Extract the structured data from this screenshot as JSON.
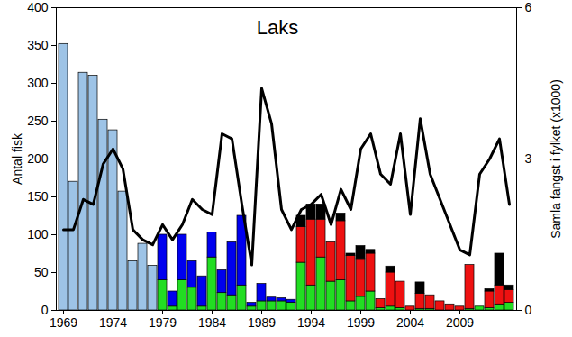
{
  "chart_data": {
    "type": "bar",
    "title": "Laks",
    "y_label": "Antal fisk",
    "y2_label": "Samla fangst i fylket (x1000)",
    "stacked": true,
    "categories": [
      1969,
      1970,
      1971,
      1972,
      1973,
      1974,
      1975,
      1976,
      1977,
      1978,
      1979,
      1980,
      1981,
      1982,
      1983,
      1984,
      1985,
      1986,
      1987,
      1988,
      1989,
      1990,
      1991,
      1992,
      1993,
      1994,
      1995,
      1996,
      1997,
      1998,
      1999,
      2000,
      2001,
      2002,
      2003,
      2004,
      2005,
      2006,
      2007,
      2008,
      2009,
      2010,
      2011,
      2012,
      2013,
      2014
    ],
    "xticks": [
      1969,
      1974,
      1979,
      1984,
      1989,
      1994,
      1999,
      2004,
      2009
    ],
    "ylim": [
      0,
      400
    ],
    "yticks": [
      0,
      50,
      100,
      150,
      200,
      250,
      300,
      350,
      400
    ],
    "y2lim": [
      0,
      6
    ],
    "y2ticks": [
      0,
      3,
      6
    ],
    "series": [
      {
        "color": "#9dc3e6",
        "values": [
          352,
          170,
          314,
          310,
          252,
          238,
          157,
          65,
          88,
          59,
          null,
          null,
          null,
          null,
          null,
          null,
          null,
          null,
          null,
          null,
          null,
          null,
          null,
          null,
          null,
          null,
          null,
          null,
          null,
          null,
          null,
          null,
          null,
          null,
          null,
          null,
          null,
          null,
          null,
          null,
          null,
          null,
          null,
          null,
          null,
          null
        ]
      },
      {
        "color": "#22dd22",
        "values": [
          null,
          null,
          null,
          null,
          null,
          null,
          null,
          null,
          null,
          null,
          40,
          5,
          40,
          30,
          5,
          70,
          23,
          20,
          33,
          5,
          12,
          12,
          12,
          10,
          63,
          33,
          70,
          38,
          40,
          12,
          18,
          25,
          3,
          5,
          3,
          0,
          2,
          2,
          0,
          0,
          0,
          2,
          5,
          3,
          8,
          10
        ]
      },
      {
        "color": "#0000ee",
        "values": [
          null,
          null,
          null,
          null,
          null,
          null,
          null,
          null,
          null,
          null,
          60,
          20,
          60,
          35,
          40,
          33,
          30,
          70,
          92,
          5,
          23,
          5,
          4,
          4,
          null,
          null,
          null,
          null,
          null,
          null,
          null,
          null,
          null,
          null,
          null,
          null,
          null,
          null,
          null,
          null,
          null,
          null,
          null,
          null,
          null,
          null
        ]
      },
      {
        "color": "#ee1111",
        "values": [
          null,
          null,
          null,
          null,
          null,
          null,
          null,
          null,
          null,
          null,
          null,
          null,
          null,
          null,
          null,
          null,
          null,
          null,
          null,
          null,
          null,
          null,
          null,
          null,
          47,
          87,
          50,
          52,
          78,
          60,
          50,
          50,
          12,
          45,
          35,
          5,
          20,
          18,
          12,
          8,
          5,
          58,
          0,
          22,
          25,
          17
        ]
      },
      {
        "color": "#000000",
        "values": [
          null,
          null,
          null,
          null,
          null,
          null,
          null,
          null,
          null,
          null,
          null,
          null,
          null,
          null,
          null,
          null,
          null,
          null,
          null,
          null,
          null,
          null,
          null,
          null,
          15,
          20,
          20,
          0,
          10,
          3,
          17,
          5,
          0,
          8,
          0,
          0,
          15,
          0,
          0,
          0,
          0,
          0,
          0,
          3,
          42,
          6
        ]
      },
      {
        "type": "line",
        "axis": "y2",
        "color": "#000000",
        "values": [
          1.6,
          1.6,
          2.2,
          2.1,
          2.9,
          3.2,
          2.8,
          1.6,
          1.4,
          1.3,
          1.7,
          1.4,
          1.7,
          2.2,
          2.0,
          1.9,
          3.5,
          3.4,
          2.1,
          0.9,
          4.4,
          3.7,
          2.0,
          1.6,
          2.0,
          2.1,
          2.3,
          1.7,
          2.4,
          2.0,
          3.2,
          3.5,
          2.7,
          2.5,
          3.5,
          1.9,
          3.8,
          2.7,
          2.2,
          1.7,
          1.2,
          1.1,
          2.7,
          3.0,
          3.4,
          2.1
        ]
      }
    ]
  }
}
